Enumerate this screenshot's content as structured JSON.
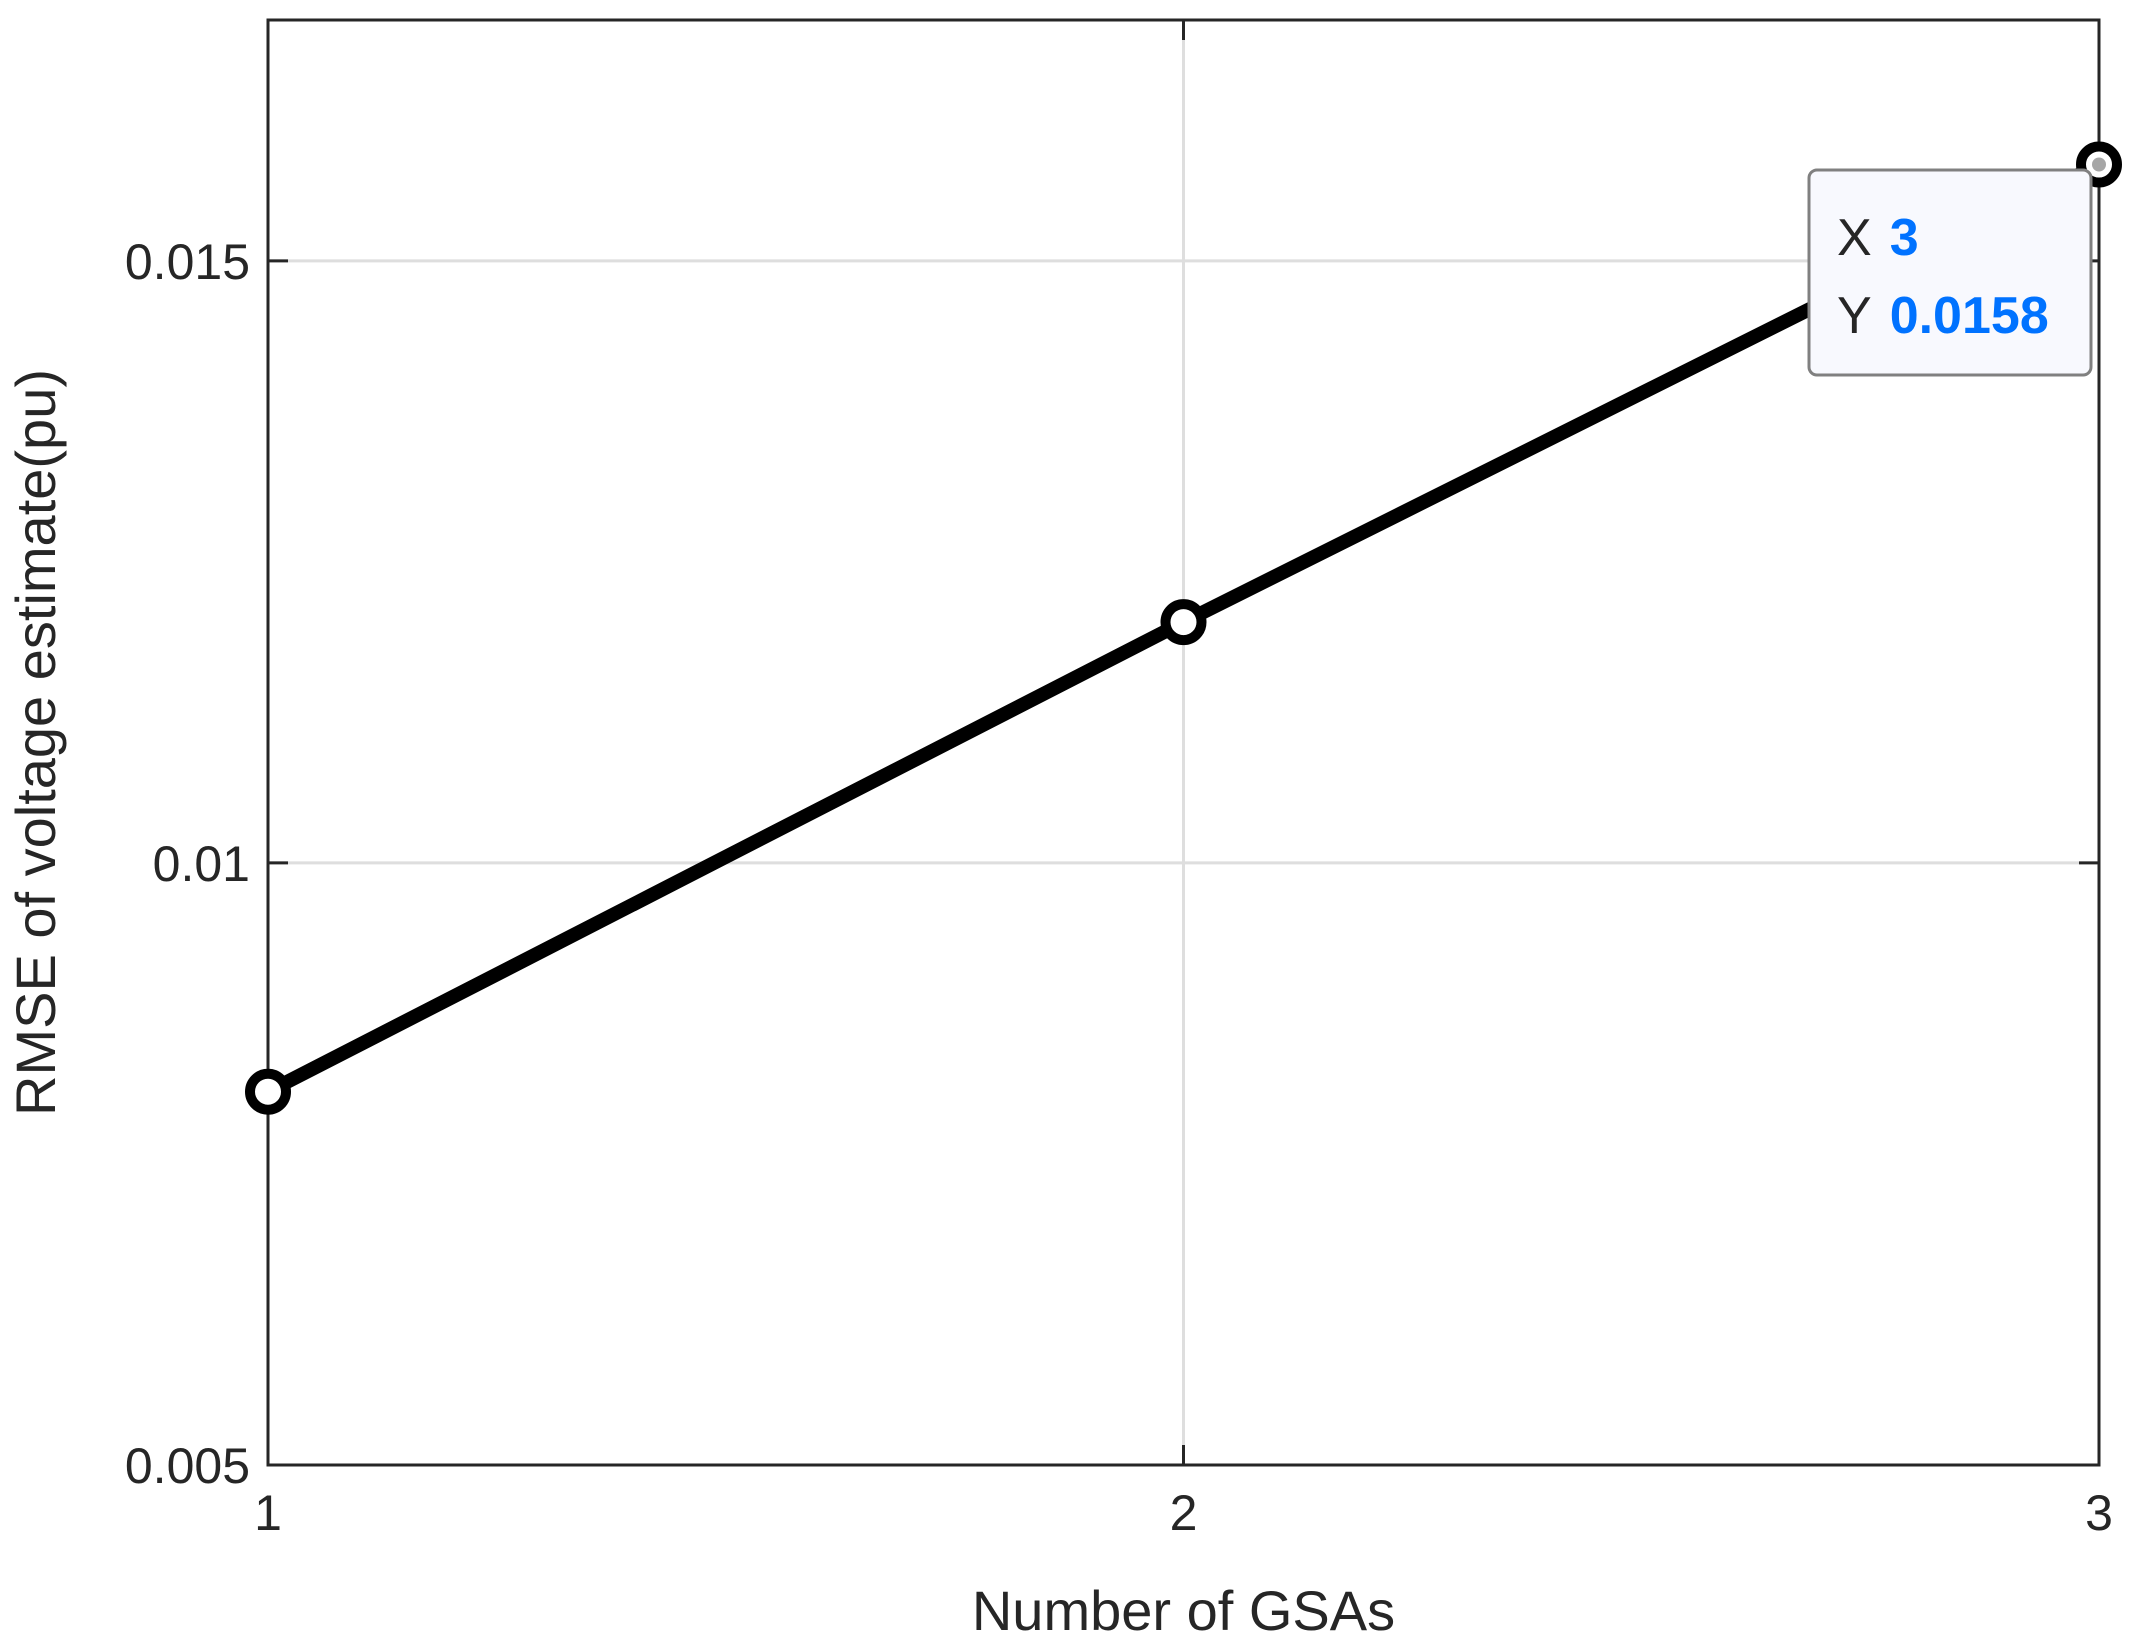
{
  "chart_data": {
    "type": "line",
    "title": "",
    "xlabel": "Number of GSAs",
    "ylabel": "RMSE of voltage estimate(pu)",
    "xlim": [
      1,
      3
    ],
    "ylim": [
      0.005,
      0.017
    ],
    "x_ticks": [
      1,
      2,
      3
    ],
    "x_tick_labels": [
      "1",
      "2",
      "3"
    ],
    "y_ticks": [
      0.005,
      0.01,
      0.015
    ],
    "y_tick_labels": [
      "0.005",
      "0.01",
      "0.015"
    ],
    "grid": true,
    "series": [
      {
        "x": [
          1,
          2,
          3
        ],
        "values": [
          0.0081,
          0.012,
          0.0158
        ],
        "color": "#000000",
        "marker": "circle"
      }
    ],
    "datatip": {
      "x_key": "X",
      "x_value": "3",
      "y_key": "Y",
      "y_value": "0.0158",
      "value_color": "#0072ff"
    }
  }
}
